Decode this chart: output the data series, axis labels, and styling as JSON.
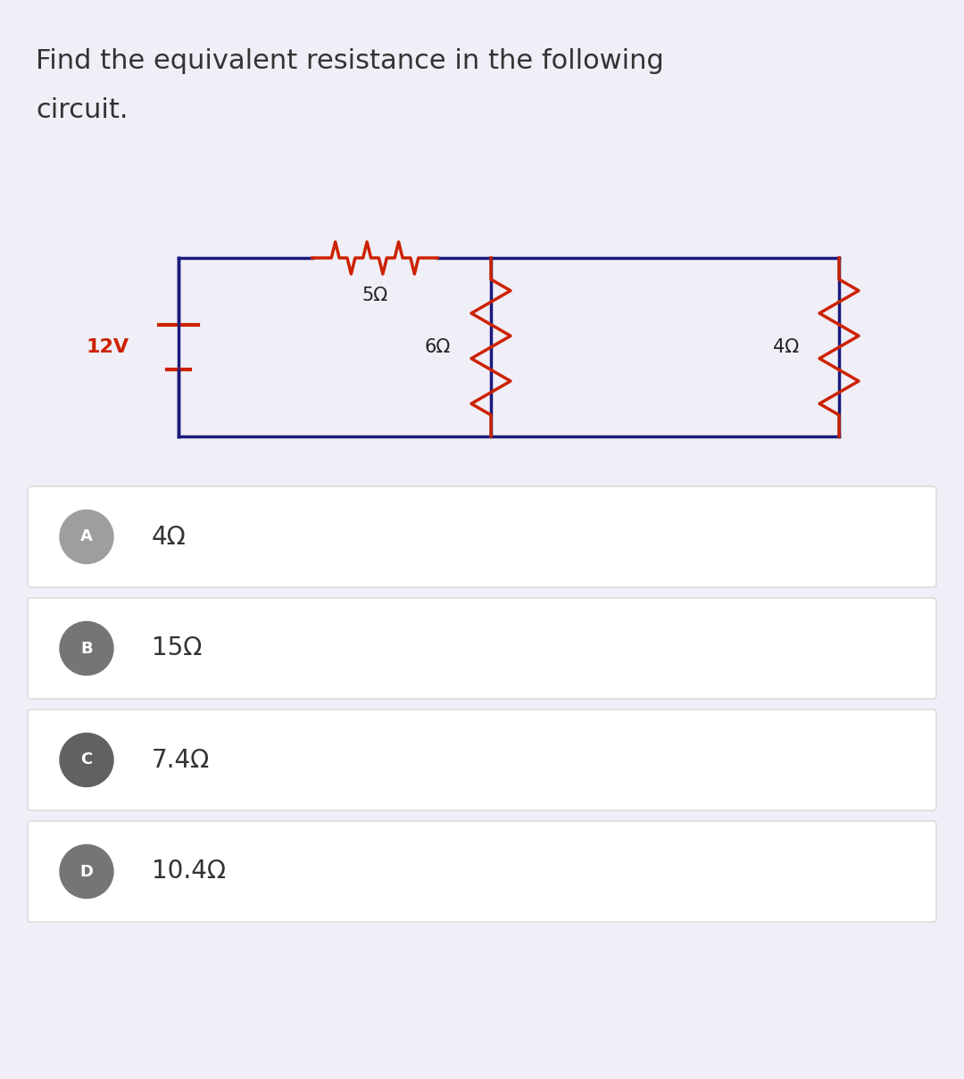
{
  "title_line1": "Find the equivalent resistance in the following",
  "title_line2": "circuit.",
  "bg_color": "#f0eef6",
  "circuit_color": "#1a1a7c",
  "resistor_color": "#cc2200",
  "voltage_color": "#cc2200",
  "label_12v": "12V",
  "resistor_top": "5Ω",
  "resistor_left_vertical": "6Ω",
  "resistor_right_vertical": "4Ω",
  "options": [
    {
      "letter": "A",
      "text": "4Ω"
    },
    {
      "letter": "B",
      "text": "15Ω"
    },
    {
      "letter": "C",
      "text": "7.4Ω"
    },
    {
      "letter": "D",
      "text": "10.4Ω"
    }
  ],
  "option_bg": "#ffffff",
  "option_border": "#dddddd",
  "option_letter_bg_A": "#9e9e9e",
  "option_letter_bg_B": "#757575",
  "option_letter_bg_C": "#616161",
  "option_letter_bg_D": "#757575",
  "title_fontsize": 22,
  "label_fontsize": 16
}
